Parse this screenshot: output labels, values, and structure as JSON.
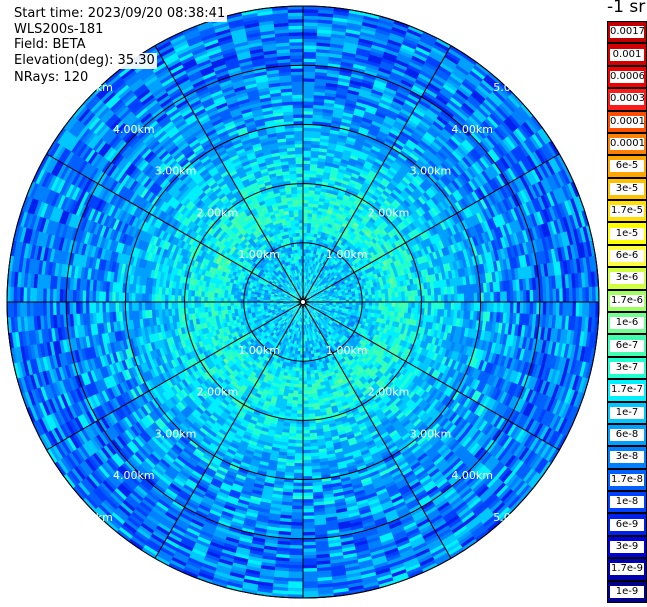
{
  "info": {
    "start_time": "Start time: 2023/09/20 08:38:41",
    "instrument": "WLS200s-181",
    "field": "Field: BETA",
    "elevation": "Elevation(deg): 35.30",
    "nrays": "NRays: 120"
  },
  "colorbar": {
    "title": "-1 sr",
    "labels": [
      "0.0017",
      "0.001",
      "0.0006",
      "0.0003",
      "0.00017",
      "0.0001",
      "6e-5",
      "3e-5",
      "1.7e-5",
      "1e-5",
      "6e-6",
      "3e-6",
      "1.7e-6",
      "1e-6",
      "6e-7",
      "3e-7",
      "1.7e-7",
      "1e-7",
      "6e-8",
      "3e-8",
      "1.7e-8",
      "1e-8",
      "6e-9",
      "3e-9",
      "1.7e-9",
      "1e-9"
    ],
    "colors": [
      "#c00000",
      "#d40000",
      "#f00000",
      "#ff1a1a",
      "#ff4d00",
      "#ff8000",
      "#ffa500",
      "#ffc000",
      "#ffe000",
      "#ffff00",
      "#ffff40",
      "#d0ff40",
      "#a0ff60",
      "#70ff90",
      "#40ffb0",
      "#20ffd0",
      "#00f0ff",
      "#00c8ff",
      "#00a0ff",
      "#0080ff",
      "#0060ff",
      "#0040ff",
      "#0020ee",
      "#0000d8",
      "#0000b0",
      "#00008a"
    ]
  },
  "chart_data": {
    "type": "heatmap",
    "projection": "polar (PPI)",
    "range_unit": "km",
    "range_rings_km": [
      1,
      2,
      3,
      4,
      5
    ],
    "ring_labels": [
      "1.00km",
      "2.00km",
      "3.00km",
      "4.00km",
      "5.00km"
    ],
    "azimuth_spokes_deg": [
      0,
      30,
      60,
      90,
      120,
      150,
      180,
      210,
      240,
      270,
      300,
      330
    ],
    "max_range_km": 5.0,
    "n_rays": 120,
    "field": "BETA",
    "elevation_deg": 35.3,
    "value_scale": "log",
    "value_range": [
      1e-09,
      0.0017
    ],
    "dominant_value_by_range_km": [
      {
        "range_km": 0.0,
        "value": 1.7e-07
      },
      {
        "range_km": 0.5,
        "value": 1e-07
      },
      {
        "range_km": 1.0,
        "value": 1e-07
      },
      {
        "range_km": 1.5,
        "value": 3e-07
      },
      {
        "range_km": 2.0,
        "value": 1.7e-07
      },
      {
        "range_km": 2.5,
        "value": 1e-07
      },
      {
        "range_km": 3.0,
        "value": 6e-08
      },
      {
        "range_km": 4.0,
        "value": 3e-08
      },
      {
        "range_km": 5.0,
        "value": 3e-08
      }
    ]
  }
}
